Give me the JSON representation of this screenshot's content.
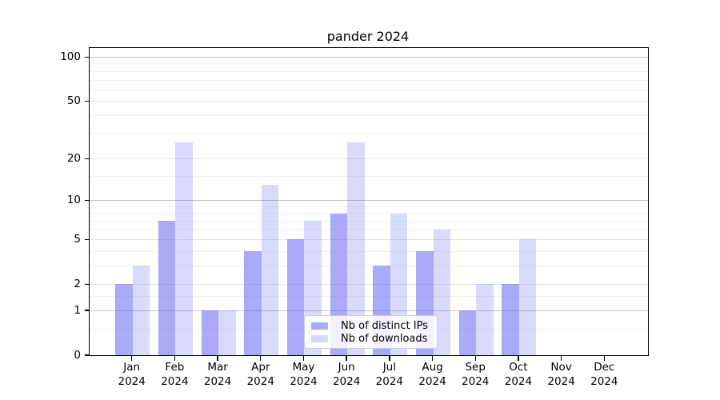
{
  "title": "pander 2024",
  "chart_data": {
    "type": "bar",
    "title": "pander 2024",
    "categories": [
      "Jan 2024",
      "Feb 2024",
      "Mar 2024",
      "Apr 2024",
      "May 2024",
      "Jun 2024",
      "Jul 2024",
      "Aug 2024",
      "Sep 2024",
      "Oct 2024",
      "Nov 2024",
      "Dec 2024"
    ],
    "series": [
      {
        "name": "Nb of distinct IPs",
        "color": "rgba(85,85,240,0.5)",
        "values": [
          2,
          7,
          1,
          4,
          5,
          8,
          3,
          4,
          1,
          2,
          0,
          0
        ]
      },
      {
        "name": "Nb of downloads",
        "color": "rgba(85,85,240,0.22)",
        "values": [
          3,
          26,
          1,
          13,
          7,
          26,
          8,
          6,
          2,
          5,
          0,
          0
        ]
      }
    ],
    "xlabel": "",
    "ylabel": "",
    "y_axis": {
      "scale": "log1p",
      "ticks": [
        0,
        1,
        2,
        5,
        10,
        20,
        50,
        100
      ],
      "ylim": [
        0,
        116
      ],
      "decade_gridlines": [
        1,
        10,
        100
      ],
      "labeled_gridlines": [
        2,
        5,
        20,
        50
      ],
      "minor_gridlines": [
        0.5,
        1.5,
        3,
        4,
        6,
        7,
        8,
        9,
        15,
        30,
        40,
        60,
        70,
        80,
        90
      ]
    },
    "grid": true,
    "legend_position": "lower center"
  },
  "colors": {
    "bar_ips": "rgba(85,85,240,0.5)",
    "bar_downloads": "rgba(85,85,240,0.22)",
    "decade_grid": "#c4c4c4",
    "light_grid": "#e6e6e6",
    "spine": "#000000"
  }
}
